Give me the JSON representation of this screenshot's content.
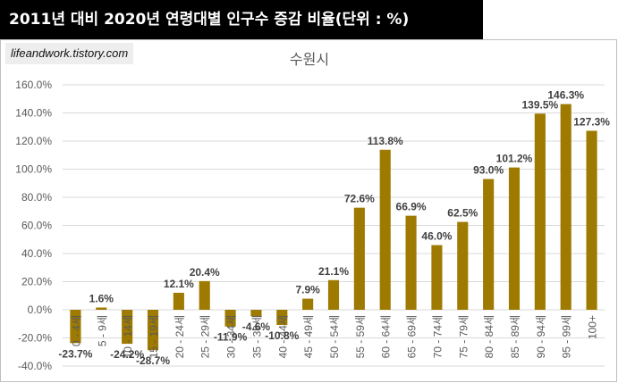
{
  "header": {
    "title": "2011년 대비 2020년 연령대별 인구수 증감 비율(단위 : %)",
    "watermark": "lifeandwork.tistory.com"
  },
  "colors": {
    "bar": "#9E7A00",
    "grid": "#d9d9d9",
    "text": "#595959",
    "label": "#404040"
  },
  "chart_data": {
    "type": "bar",
    "title": "수원시",
    "xlabel": "",
    "ylabel": "",
    "ylim": [
      -40,
      160
    ],
    "ytick_step": 20,
    "ytick_format": "0.0%",
    "grid": true,
    "categories": [
      "0 - 4세",
      "5 - 9세",
      "10 - 14세",
      "15 - 19세",
      "20 - 24세",
      "25 - 29세",
      "30 - 34세",
      "35 - 39세",
      "40 - 44세",
      "45 - 49세",
      "50 - 54세",
      "55 - 59세",
      "60 - 64세",
      "65 - 69세",
      "70 - 74세",
      "75 - 79세",
      "80 - 84세",
      "85 - 89세",
      "90 - 94세",
      "95 - 99세",
      "100+"
    ],
    "values": [
      -23.7,
      1.6,
      -24.2,
      -28.7,
      12.1,
      20.4,
      -11.9,
      -4.6,
      -10.8,
      7.9,
      21.1,
      72.6,
      113.8,
      66.9,
      46.0,
      62.5,
      93.0,
      101.2,
      139.5,
      146.3,
      127.3
    ]
  }
}
